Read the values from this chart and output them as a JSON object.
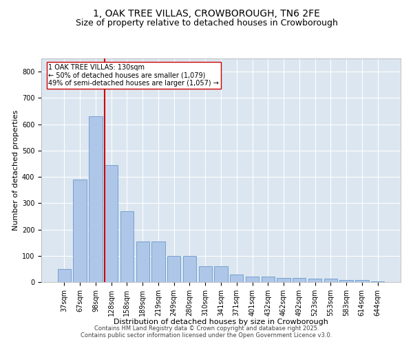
{
  "title": "1, OAK TREE VILLAS, CROWBOROUGH, TN6 2FE",
  "subtitle": "Size of property relative to detached houses in Crowborough",
  "xlabel": "Distribution of detached houses by size in Crowborough",
  "ylabel": "Number of detached properties",
  "categories": [
    "37sqm",
    "67sqm",
    "98sqm",
    "128sqm",
    "158sqm",
    "189sqm",
    "219sqm",
    "249sqm",
    "280sqm",
    "310sqm",
    "341sqm",
    "371sqm",
    "401sqm",
    "432sqm",
    "462sqm",
    "492sqm",
    "523sqm",
    "553sqm",
    "583sqm",
    "614sqm",
    "644sqm"
  ],
  "values": [
    50,
    390,
    630,
    445,
    270,
    155,
    155,
    100,
    100,
    60,
    60,
    30,
    20,
    20,
    15,
    15,
    12,
    12,
    8,
    8,
    3
  ],
  "bar_color": "#aec6e8",
  "bar_edge_color": "#6699cc",
  "vline_color": "#cc0000",
  "vline_index": 3,
  "ylim": [
    0,
    850
  ],
  "yticks": [
    0,
    100,
    200,
    300,
    400,
    500,
    600,
    700,
    800
  ],
  "annotation_text": "1 OAK TREE VILLAS: 130sqm\n← 50% of detached houses are smaller (1,079)\n49% of semi-detached houses are larger (1,057) →",
  "annotation_box_facecolor": "#ffffff",
  "annotation_box_edgecolor": "#cc0000",
  "plot_bg_color": "#dce6f0",
  "fig_bg_color": "#ffffff",
  "footer": "Contains HM Land Registry data © Crown copyright and database right 2025.\nContains public sector information licensed under the Open Government Licence v3.0.",
  "title_fontsize": 10,
  "subtitle_fontsize": 9,
  "xlabel_fontsize": 8,
  "ylabel_fontsize": 8,
  "tick_fontsize": 7,
  "annotation_fontsize": 7,
  "footer_fontsize": 6
}
